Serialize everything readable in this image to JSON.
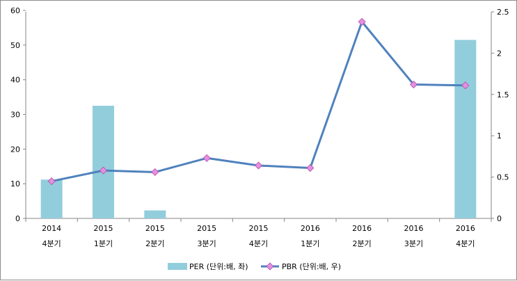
{
  "chart_data": {
    "type": "bar",
    "categories": [
      [
        "2014",
        "4분기"
      ],
      [
        "2015",
        "1분기"
      ],
      [
        "2015",
        "2분기"
      ],
      [
        "2015",
        "3분기"
      ],
      [
        "2015",
        "4분기"
      ],
      [
        "2016",
        "1분기"
      ],
      [
        "2016",
        "2분기"
      ],
      [
        "2016",
        "3분기"
      ],
      [
        "2016",
        "4분기"
      ]
    ],
    "series": [
      {
        "name": "PER (단위:배, 좌)",
        "type": "bar",
        "axis": "left",
        "color": "#92CDDC",
        "values": [
          11.2,
          32.5,
          2.3,
          null,
          null,
          null,
          null,
          null,
          51.5
        ]
      },
      {
        "name": "PBR (단위:배, 우)",
        "type": "line",
        "axis": "right",
        "color": "#4F81BD",
        "marker_color": "#E58FE0",
        "values": [
          0.45,
          0.58,
          0.56,
          0.73,
          0.64,
          0.61,
          2.38,
          1.62,
          1.61
        ]
      }
    ],
    "left_axis": {
      "min": 0,
      "max": 70,
      "ticks": [
        "0",
        "10",
        "20",
        "30",
        "40",
        "50",
        "60"
      ]
    },
    "right_axis": {
      "min": 0,
      "max": 2.5,
      "ticks": [
        "0",
        "0.5",
        "1",
        "1.5",
        "2",
        "2.5"
      ]
    },
    "grid": false,
    "legend_position": "bottom"
  }
}
